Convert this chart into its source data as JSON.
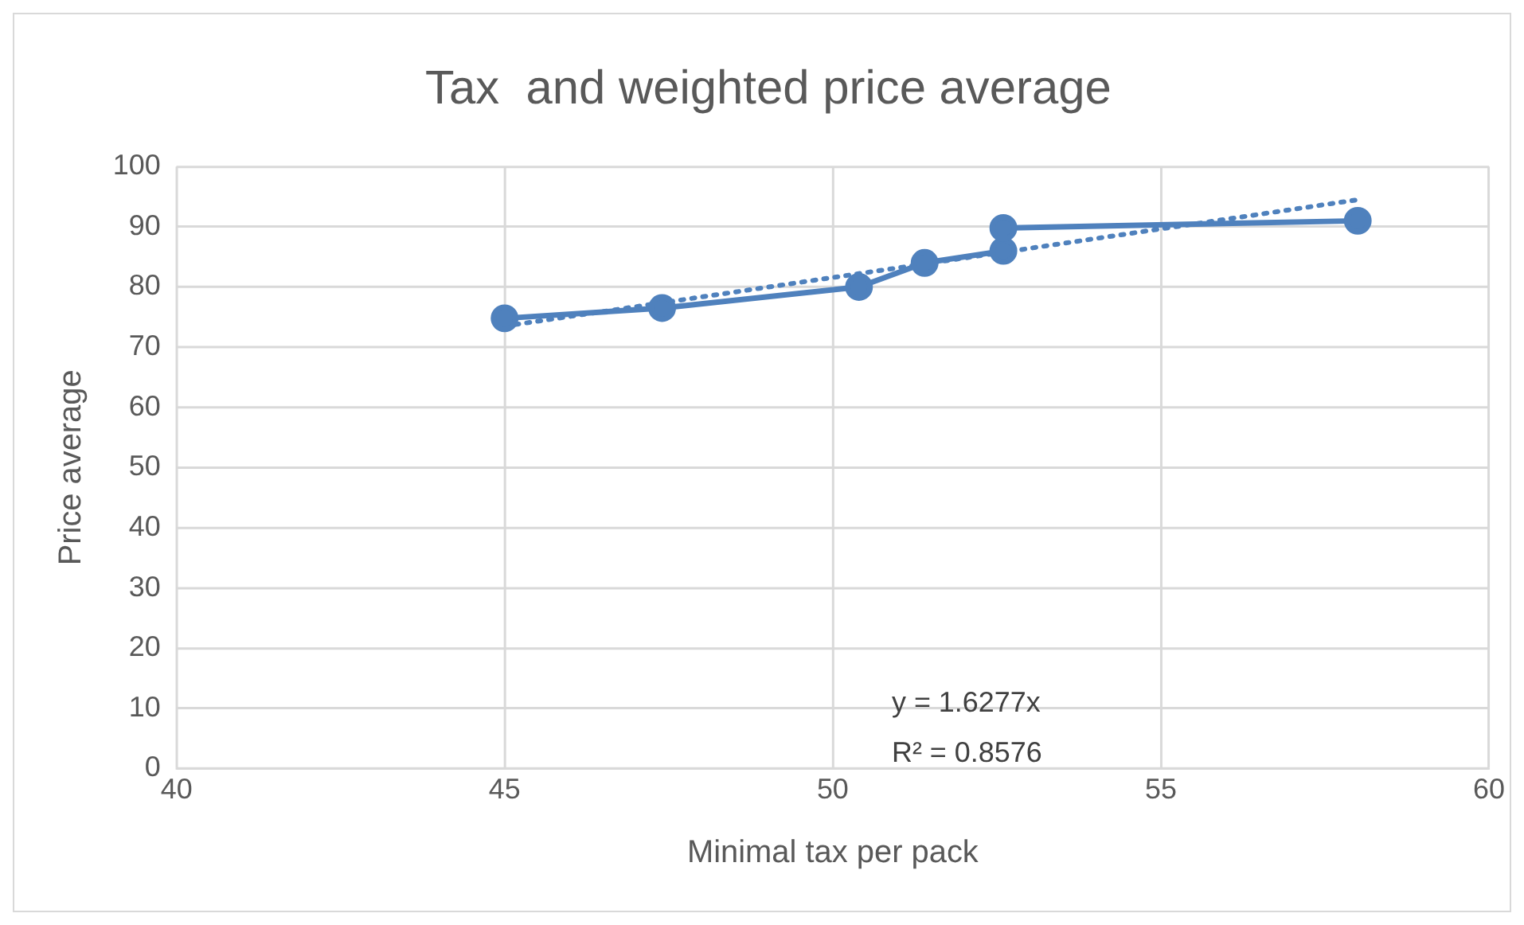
{
  "chart_data": {
    "type": "line",
    "title": "Tax  and weighted price average",
    "xlabel": "Minimal tax per pack",
    "ylabel": "Price average",
    "xlim": [
      40,
      60
    ],
    "xticks": [
      40,
      45,
      50,
      55,
      60
    ],
    "ylim": [
      0,
      100
    ],
    "yticks": [
      0,
      10,
      20,
      30,
      40,
      50,
      60,
      70,
      80,
      90,
      100
    ],
    "grid": true,
    "annotations": [
      "y = 1.6277x",
      "R² = 0.8576"
    ],
    "series": [
      {
        "color": "#4f81bd",
        "x": [
          45,
          47.4,
          50.4,
          51.4,
          52.6,
          52.6,
          58
        ],
        "values": [
          74.8,
          76.5,
          80,
          84,
          86,
          89.8,
          91
        ],
        "marker": "circle",
        "line_style": "solid"
      },
      {
        "color": "#4f81bd",
        "x": [
          45,
          58
        ],
        "values": [
          73.5,
          94.5
        ],
        "marker": "none",
        "line_style": "dotted"
      }
    ]
  }
}
